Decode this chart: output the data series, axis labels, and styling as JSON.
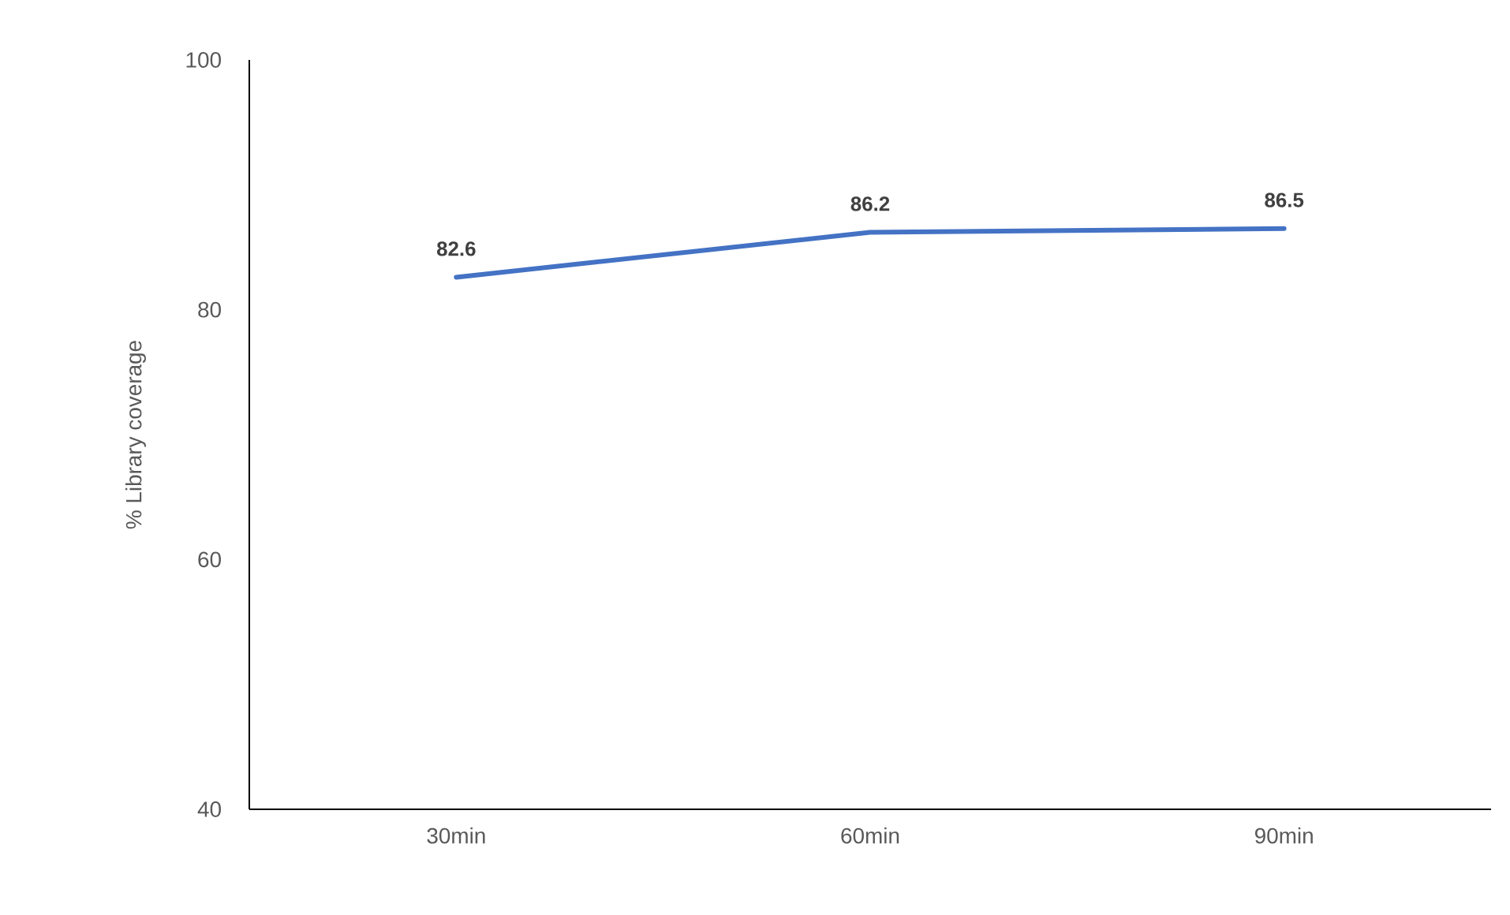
{
  "chart_data": {
    "type": "line",
    "ylabel": "% Library coverage",
    "categories": [
      "30min",
      "60min",
      "90min"
    ],
    "series": [
      {
        "color": "#4472c4",
        "values": [
          82.6,
          86.2,
          86.5
        ]
      }
    ],
    "ylim": [
      40,
      100
    ],
    "yticks": [
      40,
      60,
      80,
      100
    ],
    "data_labels": true,
    "grid": false,
    "marker": "none",
    "line_style": "solid"
  }
}
